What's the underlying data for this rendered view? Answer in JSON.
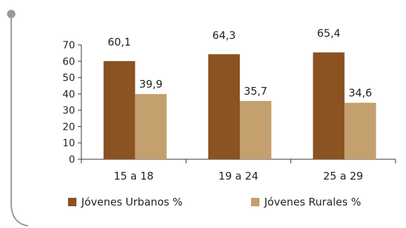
{
  "chart_data": {
    "type": "bar",
    "title": "",
    "xlabel": "",
    "ylabel": "",
    "categories": [
      "15 a 18",
      "19 a 24",
      "25 a 29"
    ],
    "series": [
      {
        "name": "Jóvenes Urbanos %",
        "values": [
          60.1,
          64.3,
          65.4
        ],
        "labels": [
          "60,1",
          "64,3",
          "65,4"
        ],
        "color": "#8b5222"
      },
      {
        "name": "Jóvenes Rurales %",
        "values": [
          39.9,
          35.7,
          34.6
        ],
        "labels": [
          "39,9",
          "35,7",
          "34,6"
        ],
        "color": "#c4a06e"
      }
    ],
    "ylim": [
      0,
      70
    ],
    "yticks": [
      0,
      10,
      20,
      30,
      40,
      50,
      60,
      70
    ],
    "grid": false,
    "legend": "bottom"
  },
  "colors": {
    "frame": "#8a8a8a",
    "axis": "#333333"
  }
}
